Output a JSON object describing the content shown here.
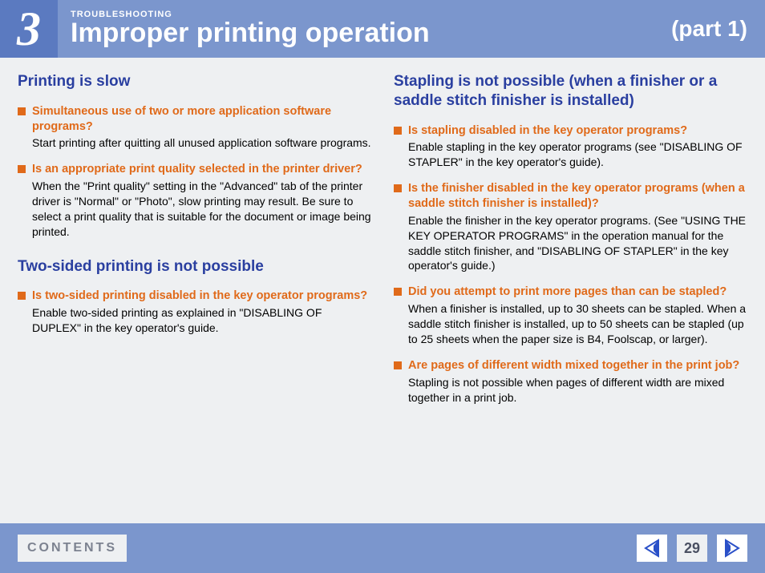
{
  "header": {
    "chapter_number": "3",
    "kicker": "TROUBLESHOOTING",
    "title": "Improper printing operation",
    "part": "(part 1)"
  },
  "left_column": [
    {
      "heading": "Printing is slow",
      "items": [
        {
          "question": "Simultaneous use of two or more application software programs?",
          "answer": "Start printing after quitting all unused application software programs."
        },
        {
          "question": "Is an appropriate print quality selected in the printer driver?",
          "answer": "When the \"Print quality\" setting in the \"Advanced\" tab of the printer driver is \"Normal\" or \"Photo\", slow printing may result. Be sure to select a print quality that is suitable for the document or image being printed."
        }
      ]
    },
    {
      "heading": "Two-sided printing is not possible",
      "items": [
        {
          "question": "Is two-sided printing disabled in the key operator programs?",
          "answer": "Enable two-sided printing as explained in \"DISABLING OF DUPLEX\" in the key operator's guide."
        }
      ]
    }
  ],
  "right_column": [
    {
      "heading": "Stapling is not possible (when a finisher or a saddle stitch finisher is installed)",
      "items": [
        {
          "question": "Is stapling disabled in the key operator programs?",
          "answer": "Enable stapling in the key operator programs (see \"DISABLING OF STAPLER\" in the key operator's guide)."
        },
        {
          "question": "Is the finisher disabled in the key operator programs (when a saddle stitch finisher is installed)?",
          "answer": "Enable the finisher in the key operator programs. (See \"USING THE KEY OPERATOR PROGRAMS\" in the operation manual for the saddle stitch finisher, and \"DISABLING OF STAPLER\" in the key operator's guide.)"
        },
        {
          "question": "Did you attempt to print more pages than can be stapled?",
          "answer": "When a finisher is installed, up to 30 sheets can be stapled. When a saddle stitch finisher is installed, up to 50 sheets can be stapled (up to 25 sheets when the paper size is B4, Foolscap, or larger)."
        },
        {
          "question": "Are pages of different width mixed together in the print job?",
          "answer": "Stapling is not possible when pages of different width are mixed together in a print job."
        }
      ]
    }
  ],
  "footer": {
    "contents_label": "CONTENTS",
    "page_number": "29"
  },
  "colors": {
    "header_left_bg": "#5b7ac0",
    "header_right_bg": "#7b96cd",
    "body_bg": "#eef0f2",
    "heading_color": "#2a3fa0",
    "accent_orange": "#e06a1a",
    "footer_bg": "#7b96cd",
    "arrow_prev": "#2a50c8",
    "arrow_next": "#2a50c8"
  }
}
